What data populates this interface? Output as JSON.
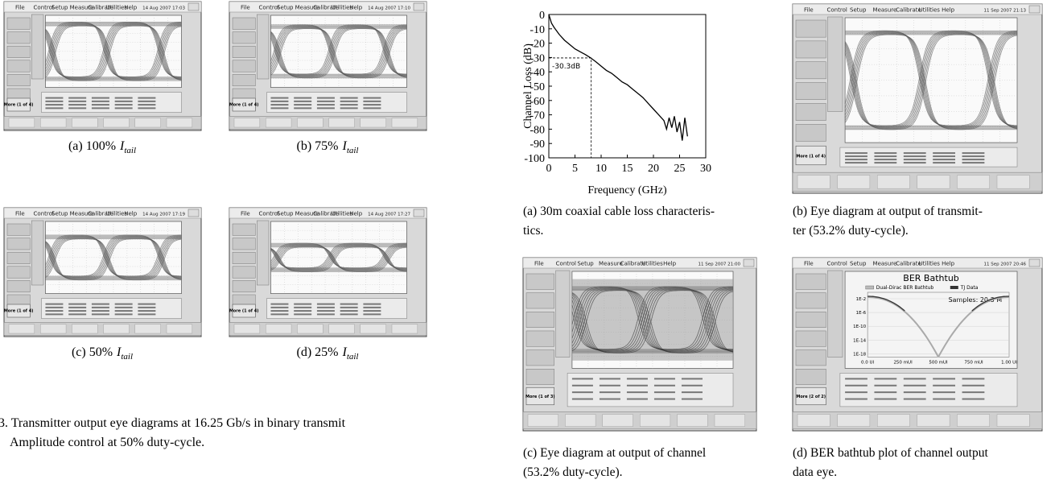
{
  "scope_menu": [
    "File",
    "Control",
    "Setup",
    "Measure",
    "Calibrate",
    "Utilities",
    "Help"
  ],
  "figure_left": {
    "panels": [
      {
        "label": "(a) 100%",
        "var": "I",
        "sub": "tail",
        "date": "14 Aug 2007  17:03",
        "more": "More (1 of 4)"
      },
      {
        "label": "(b) 75%",
        "var": "I",
        "sub": "tail",
        "date": "14 Aug 2007  17:10",
        "more": "More (1 of 4)"
      },
      {
        "label": "(c) 50%",
        "var": "I",
        "sub": "tail",
        "date": "14 Aug 2007  17:19",
        "more": "More (1 of 4)"
      },
      {
        "label": "(d) 25%",
        "var": "I",
        "sub": "tail",
        "date": "14 Aug 2007  17:27",
        "more": "More (1 of 4)"
      }
    ],
    "caption_lines": [
      "3.  Transmitter output eye diagrams at 16.25 Gb/s in binary transmit",
      "Amplitude control at 50% duty-cycle."
    ]
  },
  "chart_data": {
    "type": "line",
    "xlabel": "Frequency (GHz)",
    "ylabel": "Channel Loss (dB)",
    "x": [
      0,
      0.5,
      1,
      2,
      3,
      4,
      5,
      6,
      7,
      8,
      9,
      10,
      11,
      12,
      13,
      14,
      15,
      16,
      17,
      18,
      19,
      20,
      21,
      22,
      22.5,
      23,
      23.5,
      24,
      24.5,
      25,
      25.5,
      26,
      26.5
    ],
    "values": [
      0,
      -6,
      -9,
      -14,
      -18,
      -21,
      -24,
      -26,
      -28,
      -30.3,
      -33,
      -36,
      -39,
      -41,
      -44,
      -47,
      -49,
      -52,
      -55,
      -58,
      -62,
      -66,
      -70,
      -74,
      -80,
      -72,
      -79,
      -71,
      -82,
      -75,
      -88,
      -72,
      -85
    ],
    "color": "#000000",
    "xlim": [
      0,
      30
    ],
    "ylim": [
      -100,
      0
    ],
    "xticks": [
      0,
      5,
      10,
      15,
      20,
      25,
      30
    ],
    "yticks": [
      0,
      -10,
      -20,
      -30,
      -40,
      -50,
      -60,
      -70,
      -80,
      -90,
      -100
    ],
    "annotation": {
      "text": "-30.3dB",
      "x": 8.1,
      "y": -30.3
    }
  },
  "figure_right": {
    "captions": [
      [
        "(a) 30m coaxial cable loss characteris-",
        "tics."
      ],
      [
        "(b) Eye diagram at output of transmit-",
        "ter (53.2% duty-cycle)."
      ],
      [
        "(c) Eye diagram at output of channel",
        "(53.2% duty-cycle)."
      ],
      [
        "(d) BER bathtub plot of channel output",
        "data eye."
      ]
    ],
    "scopes": [
      {
        "date": "11 Sep 2007  21:13",
        "more": "More (1 of 4)"
      },
      {
        "date": "11 Sep 2007  21:00",
        "more": "More (1 of 3)"
      },
      {
        "date": "11 Sep 2007  20:46",
        "more": "More (2 of 2)"
      }
    ],
    "bathtub": {
      "title": "BER Bathtub",
      "legend": [
        "Dual-Dirac BER Bathtub",
        "TJ Data"
      ],
      "samples": "Samples: 20.3 M",
      "yticks": [
        "1E-2",
        "1E-6",
        "1E-10",
        "1E-14",
        "1E-18"
      ],
      "xticks": [
        "0.0 UI",
        "250 mUI",
        "500 mUI",
        "750 mUI",
        "1.00 UI"
      ]
    }
  }
}
